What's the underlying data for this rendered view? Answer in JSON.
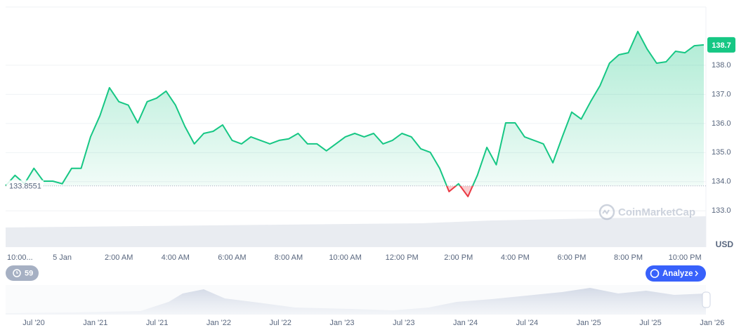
{
  "chart_data": {
    "type": "line",
    "categories": [
      "10:00...",
      null,
      null,
      null,
      null,
      null,
      "5 Jan",
      null,
      null,
      null,
      null,
      null,
      "2:00 AM",
      null,
      null,
      null,
      null,
      null,
      "4:00 AM",
      null,
      null,
      null,
      null,
      null,
      "6:00 AM",
      null,
      null,
      null,
      null,
      null,
      "8:00 AM",
      null,
      null,
      null,
      null,
      null,
      "10:00 AM",
      null,
      null,
      null,
      null,
      null,
      "12:00 PM",
      null,
      null,
      null,
      null,
      null,
      "2:00 PM",
      null,
      null,
      null,
      null,
      null,
      "4:00 PM",
      null,
      null,
      null,
      null,
      null,
      "6:00 PM",
      null,
      null,
      null,
      null,
      null,
      "8:00 PM",
      null,
      null,
      null,
      null,
      null,
      "10:00 PM",
      null,
      null
    ],
    "values": [
      133.86,
      134.22,
      133.93,
      134.46,
      134.02,
      134.02,
      133.93,
      134.46,
      134.46,
      135.54,
      136.27,
      137.23,
      136.75,
      136.63,
      136.02,
      136.75,
      136.87,
      137.11,
      136.63,
      135.9,
      135.3,
      135.66,
      135.73,
      135.95,
      135.42,
      135.3,
      135.54,
      135.42,
      135.3,
      135.42,
      135.47,
      135.66,
      135.3,
      135.3,
      135.06,
      135.3,
      135.54,
      135.66,
      135.54,
      135.66,
      135.3,
      135.42,
      135.66,
      135.54,
      135.13,
      135.01,
      134.46,
      133.66,
      133.93,
      133.49,
      134.22,
      135.18,
      134.58,
      136.02,
      136.02,
      135.54,
      135.42,
      135.3,
      134.65,
      135.54,
      136.39,
      136.15,
      136.75,
      137.3,
      138.07,
      138.36,
      138.43,
      139.16,
      138.55,
      138.07,
      138.12,
      138.48,
      138.43,
      138.67,
      138.7
    ],
    "color": "#16c784",
    "below_color": "#ea3943",
    "baseline": 133.8551,
    "last_price": 138.7,
    "ylim": [
      131.8,
      140
    ],
    "yticks": [
      {
        "value": 133,
        "label": "133.0"
      },
      {
        "value": 134,
        "label": "134.0"
      },
      {
        "value": 135,
        "label": "135.0"
      },
      {
        "value": 136,
        "label": "136.0"
      },
      {
        "value": 137,
        "label": "137.0"
      },
      {
        "value": 138,
        "label": "138.0"
      }
    ],
    "grid": true,
    "y_unit": "USD",
    "watermark": "CoinMarketCap",
    "history_count": 59,
    "analyze_button": "Analyze",
    "navigator_labels": [
      "Jul '20",
      "Jan '21",
      "Jul '21",
      "Jan '22",
      "Jul '22",
      "Jan '23",
      "Jul '23",
      "Jan '24",
      "Jul '24",
      "Jan '25",
      "Jul '25",
      "Jan '26"
    ]
  }
}
